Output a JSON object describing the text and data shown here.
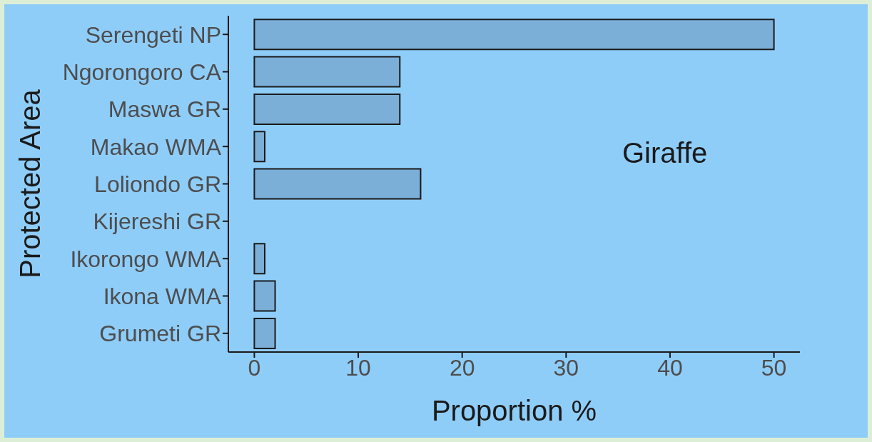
{
  "chart_data": {
    "type": "bar",
    "orientation": "horizontal",
    "categories": [
      "Serengeti NP",
      "Ngorongoro CA",
      "Maswa GR",
      "Makao WMA",
      "Loliondo GR",
      "Kijereshi GR",
      "Ikorongo WMA",
      "Ikona WMA",
      "Grumeti GR"
    ],
    "values": [
      50,
      14,
      14,
      1,
      16,
      0,
      1,
      2,
      2
    ],
    "color": "#7bafd8",
    "xlim": [
      -2.5,
      52.5
    ],
    "xticks": [
      0,
      10,
      20,
      30,
      40,
      50
    ],
    "xlabel": "Proportion %",
    "ylabel": "Protected Area",
    "annotations": [
      "Giraffe"
    ],
    "grid": false
  }
}
